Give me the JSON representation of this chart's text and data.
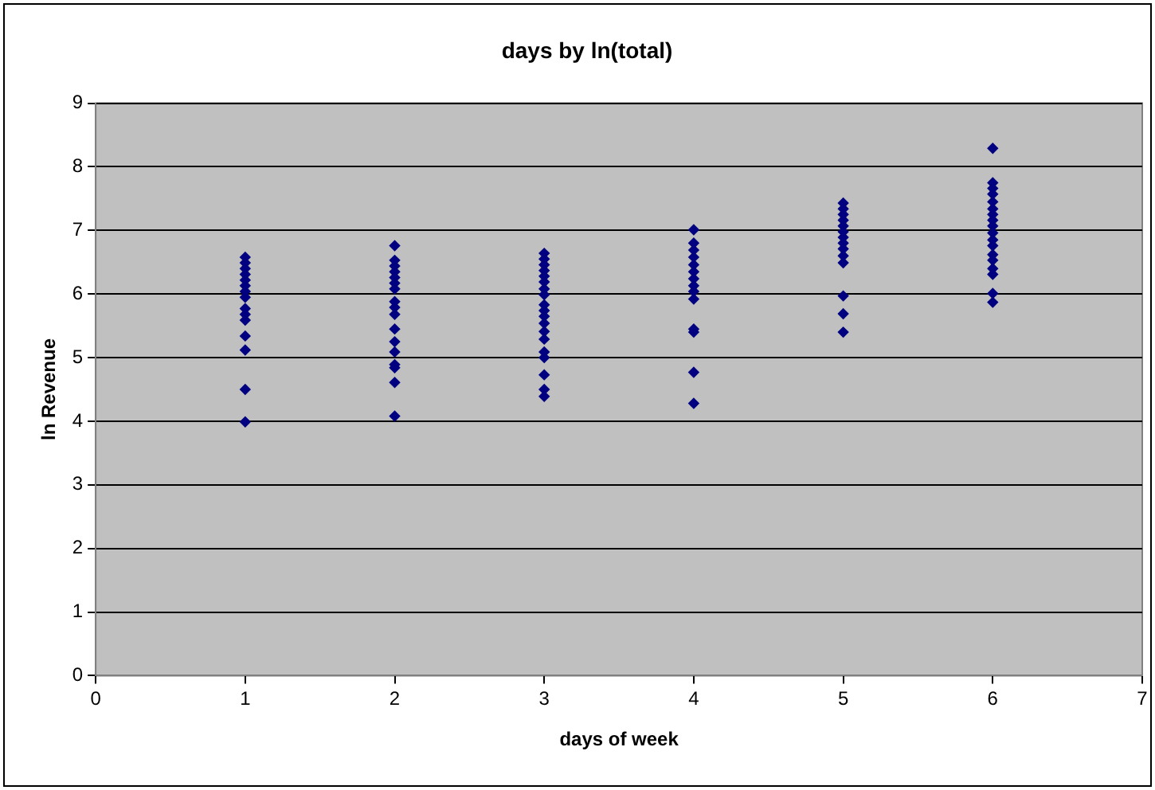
{
  "chart_data": {
    "type": "scatter",
    "title": "days by ln(total)",
    "xlabel": "days of week",
    "ylabel": "ln Revenue",
    "xlim": [
      0,
      7
    ],
    "xticks": [
      0,
      1,
      2,
      3,
      4,
      5,
      6,
      7
    ],
    "ylim": [
      0,
      9
    ],
    "yticks": [
      0,
      1,
      2,
      3,
      4,
      5,
      6,
      7,
      8,
      9
    ],
    "grid": "y",
    "legend": false,
    "marker": "diamond",
    "series": [
      {
        "color": "#000080",
        "x": [
          1,
          1,
          1,
          1,
          1,
          1,
          1,
          1,
          1,
          1,
          1,
          1,
          1,
          1,
          1,
          2,
          2,
          2,
          2,
          2,
          2,
          2,
          2,
          2,
          2,
          2,
          2,
          2,
          2,
          2,
          2,
          2,
          3,
          3,
          3,
          3,
          3,
          3,
          3,
          3,
          3,
          3,
          3,
          3,
          3,
          3,
          3,
          3,
          3,
          3,
          3,
          4,
          4,
          4,
          4,
          4,
          4,
          4,
          4,
          4,
          4,
          4,
          4,
          4,
          4,
          5,
          5,
          5,
          5,
          5,
          5,
          5,
          5,
          5,
          5,
          5,
          5,
          5,
          5,
          6,
          6,
          6,
          6,
          6,
          6,
          6,
          6,
          6,
          6,
          6,
          6,
          6,
          6,
          6,
          6,
          6,
          6
        ],
        "values": [
          6.58,
          6.49,
          6.4,
          6.31,
          6.22,
          6.13,
          6.04,
          5.95,
          5.77,
          5.68,
          5.59,
          5.34,
          5.12,
          4.5,
          3.99,
          6.76,
          6.53,
          6.44,
          6.35,
          6.26,
          6.17,
          6.08,
          5.88,
          5.79,
          5.68,
          5.45,
          5.25,
          5.09,
          4.89,
          4.84,
          4.61,
          4.08,
          6.64,
          6.55,
          6.46,
          6.37,
          6.28,
          6.19,
          6.08,
          5.99,
          5.83,
          5.74,
          5.65,
          5.54,
          5.41,
          5.29,
          5.09,
          5.0,
          4.73,
          4.5,
          4.39,
          7.01,
          6.8,
          6.69,
          6.58,
          6.46,
          6.35,
          6.24,
          6.13,
          6.04,
          5.92,
          5.45,
          5.4,
          4.77,
          4.28,
          7.43,
          7.34,
          7.25,
          7.16,
          7.07,
          6.98,
          6.89,
          6.8,
          6.71,
          6.6,
          6.49,
          5.97,
          5.69,
          5.4,
          8.29,
          7.75,
          7.66,
          7.57,
          7.45,
          7.34,
          7.25,
          7.16,
          7.07,
          6.96,
          6.85,
          6.76,
          6.62,
          6.53,
          6.4,
          6.31,
          6.01,
          5.87
        ]
      }
    ]
  }
}
